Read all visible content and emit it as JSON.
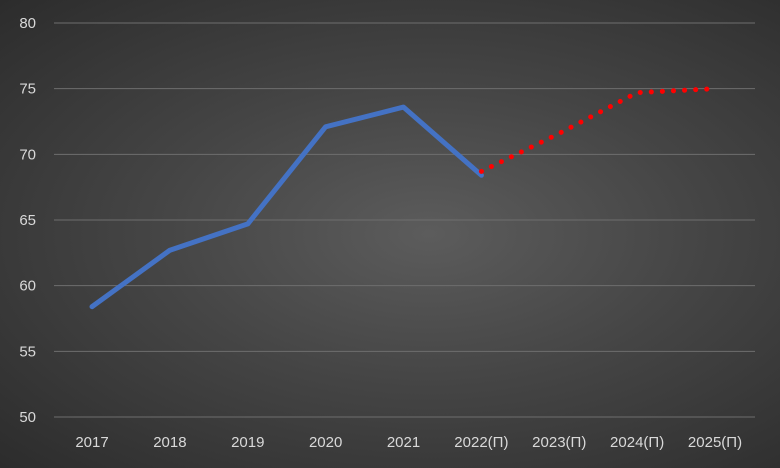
{
  "chart_data": {
    "type": "line",
    "categories": [
      "2017",
      "2018",
      "2019",
      "2020",
      "2021",
      "2022(П)",
      "2023(П)",
      "2024(П)",
      "2025(П)"
    ],
    "series": [
      {
        "values": [
          58.4,
          62.7,
          64.7,
          72.1,
          73.6,
          68.4,
          null,
          null,
          null
        ],
        "color": "#4472c4",
        "style": "solid"
      },
      {
        "values": [
          null,
          null,
          null,
          null,
          null,
          68.7,
          71.6,
          74.7,
          75.0
        ],
        "color": "#ff0000",
        "style": "dotted"
      }
    ],
    "ylim": [
      50,
      80
    ],
    "yticks": [
      50,
      55,
      60,
      65,
      70,
      75,
      80
    ],
    "grid": true
  },
  "colors": {
    "grid": "#6e6e6e",
    "text": "#d9d9d9"
  }
}
